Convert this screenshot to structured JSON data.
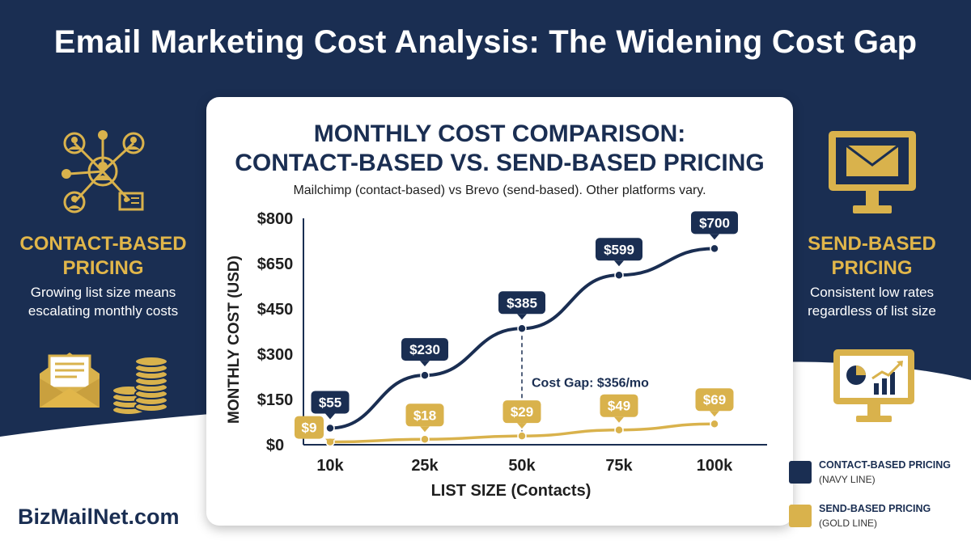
{
  "page_title": "Email Marketing Cost Analysis: The Widening Cost Gap",
  "left_panel": {
    "heading_line1": "CONTACT-BASED",
    "heading_line2": "PRICING",
    "desc_line1": "Growing list size means",
    "desc_line2": "escalating monthly costs",
    "icons": [
      "network-people-icon",
      "envelope-open-icon",
      "coins-icon"
    ]
  },
  "right_panel": {
    "heading_line1": "SEND-BASED",
    "heading_line2": "PRICING",
    "desc_line1": "Consistent low rates",
    "desc_line2": "regardless of list size",
    "icons": [
      "monitor-envelope-icon",
      "monitor-chart-icon"
    ]
  },
  "brand": "BizMailNet.com",
  "legend": [
    {
      "name": "CONTACT-BASED PRICING",
      "note": "(NAVY LINE)",
      "color": "#1a2e52"
    },
    {
      "name": "SEND-BASED PRICING",
      "note": "(GOLD LINE)",
      "color": "#d9b24c"
    }
  ],
  "colors": {
    "navy": "#1a2e52",
    "gold": "#d9b24c",
    "gold_text": "#e1b64a"
  },
  "chart_data": {
    "type": "line",
    "title_line1": "MONTHLY COST COMPARISON:",
    "title_line2": "CONTACT-BASED VS. SEND-BASED PRICING",
    "subtitle": "Mailchimp (contact-based) vs Brevo (send-based). Other platforms vary.",
    "xlabel": "LIST SIZE (Contacts)",
    "ylabel": "MONTHLY COST (USD)",
    "categories": [
      "10k",
      "25k",
      "50k",
      "75k",
      "100k"
    ],
    "y_ticks": [
      0,
      150,
      300,
      450,
      650,
      800
    ],
    "y_tick_labels": [
      "$0",
      "$150",
      "$300",
      "$450",
      "$650",
      "$800"
    ],
    "series": [
      {
        "values": [
          55,
          230,
          385,
          599,
          700
        ],
        "labels": [
          "$55",
          "$230",
          "$385",
          "$599",
          "$700"
        ],
        "color": "#1a2e52"
      },
      {
        "values": [
          9,
          18,
          29,
          49,
          69
        ],
        "labels": [
          "$9",
          "$18",
          "$29",
          "$49",
          "$69"
        ],
        "color": "#d9b24c"
      }
    ],
    "annotation": {
      "text": "Cost Gap: $356/mo",
      "category": "50k"
    }
  }
}
